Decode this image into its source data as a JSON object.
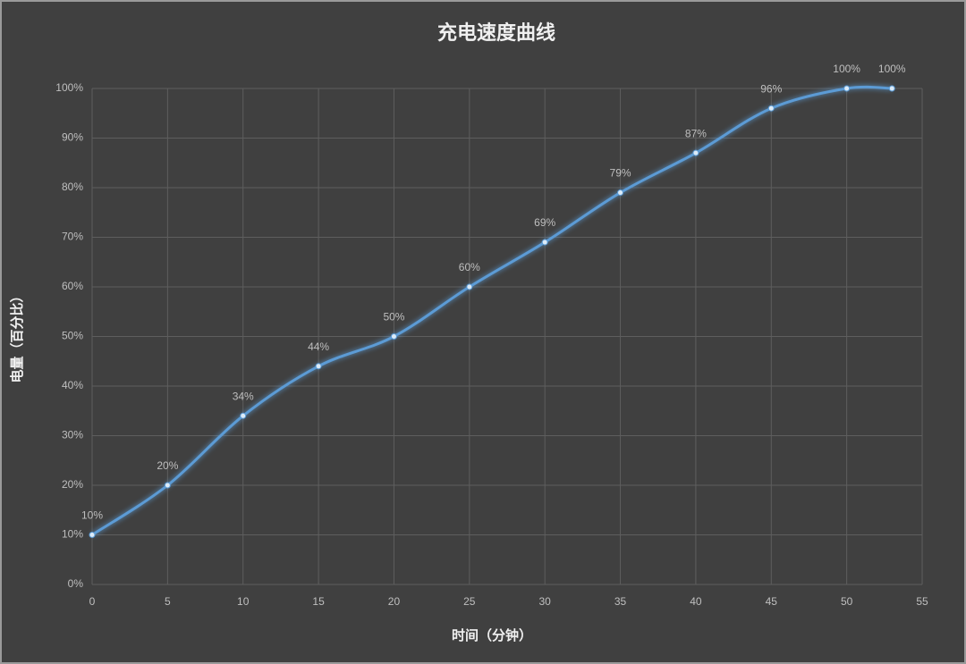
{
  "chart_data": {
    "type": "line",
    "title": "充电速度曲线",
    "x_label": "时间（分钟）",
    "y_label": "电量（百分比）",
    "x": [
      0,
      5,
      10,
      15,
      20,
      25,
      30,
      35,
      40,
      45,
      50,
      53
    ],
    "series": [
      {
        "name": "电量",
        "color": "#5b9bd5",
        "values": [
          10,
          20,
          34,
          44,
          50,
          60,
          69,
          79,
          87,
          96,
          100,
          100
        ],
        "value_labels": [
          "10%",
          "20%",
          "34%",
          "44%",
          "50%",
          "60%",
          "69%",
          "79%",
          "87%",
          "96%",
          "100%",
          "100%"
        ]
      }
    ],
    "xlim": [
      0,
      55
    ],
    "xticks": [
      0,
      5,
      10,
      15,
      20,
      25,
      30,
      35,
      40,
      45,
      50,
      55
    ],
    "ylim": [
      0,
      100
    ],
    "yticks": [
      {
        "value": 0,
        "label": "0%"
      },
      {
        "value": 10,
        "label": "10%"
      },
      {
        "value": 20,
        "label": "20%"
      },
      {
        "value": 30,
        "label": "30%"
      },
      {
        "value": 40,
        "label": "40%"
      },
      {
        "value": 50,
        "label": "50%"
      },
      {
        "value": 60,
        "label": "60%"
      },
      {
        "value": 70,
        "label": "70%"
      },
      {
        "value": 80,
        "label": "80%"
      },
      {
        "value": 90,
        "label": "90%"
      },
      {
        "value": 100,
        "label": "100%"
      }
    ],
    "grid": true
  }
}
